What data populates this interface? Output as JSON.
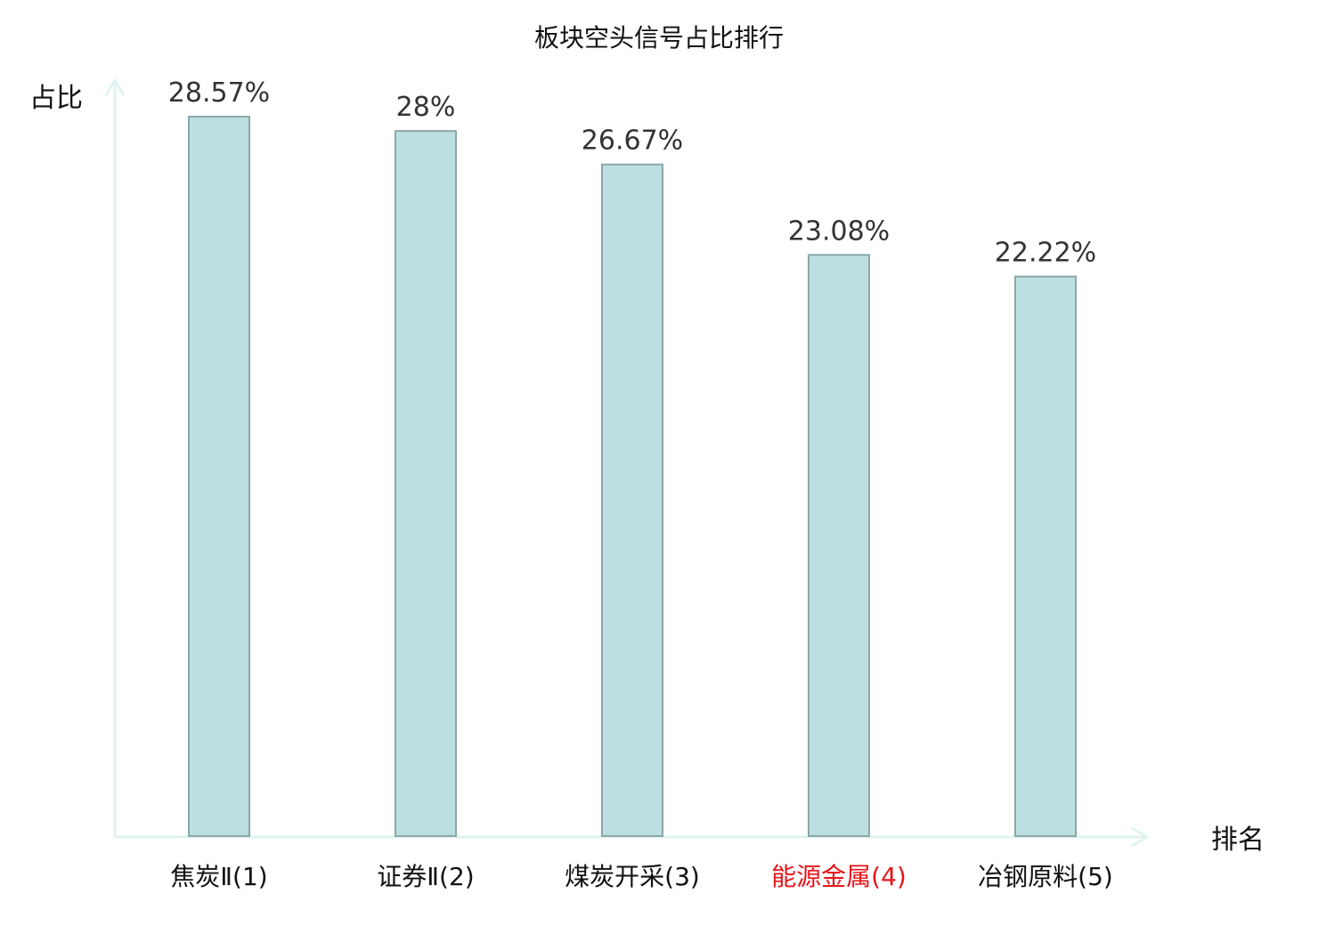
{
  "chart_data": {
    "type": "bar",
    "title": "板块空头信号占比排行",
    "ylabel": "占比",
    "xlabel": "排名",
    "categories": [
      "焦炭Ⅱ(1)",
      "证券Ⅱ(2)",
      "煤炭开采(3)",
      "能源金属(4)",
      "冶钢原料(5)"
    ],
    "values": [
      28.57,
      28,
      26.67,
      23.08,
      22.22
    ],
    "value_labels": [
      "28.57%",
      "28%",
      "26.67%",
      "23.08%",
      "22.22%"
    ],
    "highlight_category": "能源金属(4)",
    "ylim": [
      0,
      28.57
    ],
    "grid": false,
    "legend": "none"
  },
  "colors": {
    "bar_fill": "#bce0e1",
    "bar_stroke": "#8ca7a8",
    "axis": "#e0f3f1",
    "text": "#111111",
    "value_text": "#333333",
    "highlight_text": "#e8141b"
  }
}
